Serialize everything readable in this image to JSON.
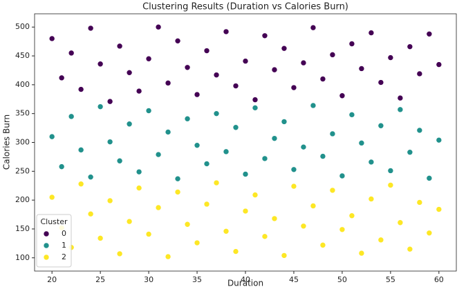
{
  "chart_data": {
    "type": "scatter",
    "title": "Clustering Results (Duration vs Calories Burn)",
    "x_label": "Duration",
    "y_label": "Calories Burn",
    "xlim": [
      18.2,
      61.8
    ],
    "ylim": [
      77,
      523
    ],
    "xticks": [
      20,
      25,
      30,
      35,
      40,
      45,
      50,
      55,
      60
    ],
    "yticks": [
      100,
      150,
      200,
      250,
      300,
      350,
      400,
      450,
      500
    ],
    "legend_title": "Cluster",
    "legend_position": "lower left",
    "series": [
      {
        "name": "0",
        "color": "#440154",
        "x": [
          20,
          21,
          22,
          23,
          24,
          25,
          26,
          27,
          28,
          29,
          30,
          31,
          32,
          33,
          34,
          35,
          36,
          37,
          38,
          39,
          40,
          41,
          42,
          43,
          44,
          45,
          46,
          47,
          48,
          49,
          50,
          51,
          52,
          53,
          54,
          55,
          56,
          57,
          58,
          59,
          60
        ],
        "y": [
          480,
          412,
          455,
          392,
          498,
          436,
          371,
          467,
          421,
          389,
          445,
          500,
          403,
          476,
          430,
          383,
          459,
          417,
          492,
          398,
          441,
          374,
          485,
          426,
          463,
          395,
          438,
          499,
          410,
          452,
          381,
          471,
          428,
          490,
          404,
          447,
          377,
          466,
          419,
          488,
          435
        ]
      },
      {
        "name": "1",
        "color": "#21918c",
        "x": [
          20,
          21,
          22,
          23,
          24,
          25,
          26,
          27,
          28,
          29,
          30,
          31,
          32,
          33,
          34,
          35,
          36,
          37,
          38,
          39,
          40,
          41,
          42,
          43,
          44,
          45,
          46,
          47,
          48,
          49,
          50,
          51,
          52,
          53,
          54,
          55,
          56,
          57,
          58,
          59,
          60
        ],
        "y": [
          310,
          258,
          345,
          287,
          240,
          362,
          301,
          268,
          332,
          249,
          355,
          279,
          318,
          237,
          341,
          295,
          263,
          350,
          284,
          326,
          245,
          360,
          272,
          307,
          336,
          253,
          292,
          364,
          276,
          315,
          242,
          348,
          299,
          266,
          329,
          251,
          357,
          283,
          321,
          238,
          304
        ]
      },
      {
        "name": "2",
        "color": "#fde725",
        "x": [
          20,
          21,
          22,
          23,
          24,
          25,
          26,
          27,
          28,
          29,
          30,
          31,
          32,
          33,
          34,
          35,
          36,
          37,
          38,
          39,
          40,
          41,
          42,
          43,
          44,
          45,
          46,
          47,
          48,
          49,
          50,
          51,
          52,
          53,
          54,
          55,
          56,
          57,
          58,
          59,
          60
        ],
        "y": [
          205,
          152,
          118,
          228,
          176,
          134,
          199,
          107,
          163,
          221,
          141,
          187,
          102,
          214,
          158,
          126,
          193,
          230,
          146,
          111,
          181,
          209,
          137,
          168,
          104,
          224,
          155,
          190,
          122,
          217,
          149,
          173,
          108,
          202,
          131,
          226,
          161,
          115,
          196,
          143,
          184
        ]
      }
    ]
  }
}
